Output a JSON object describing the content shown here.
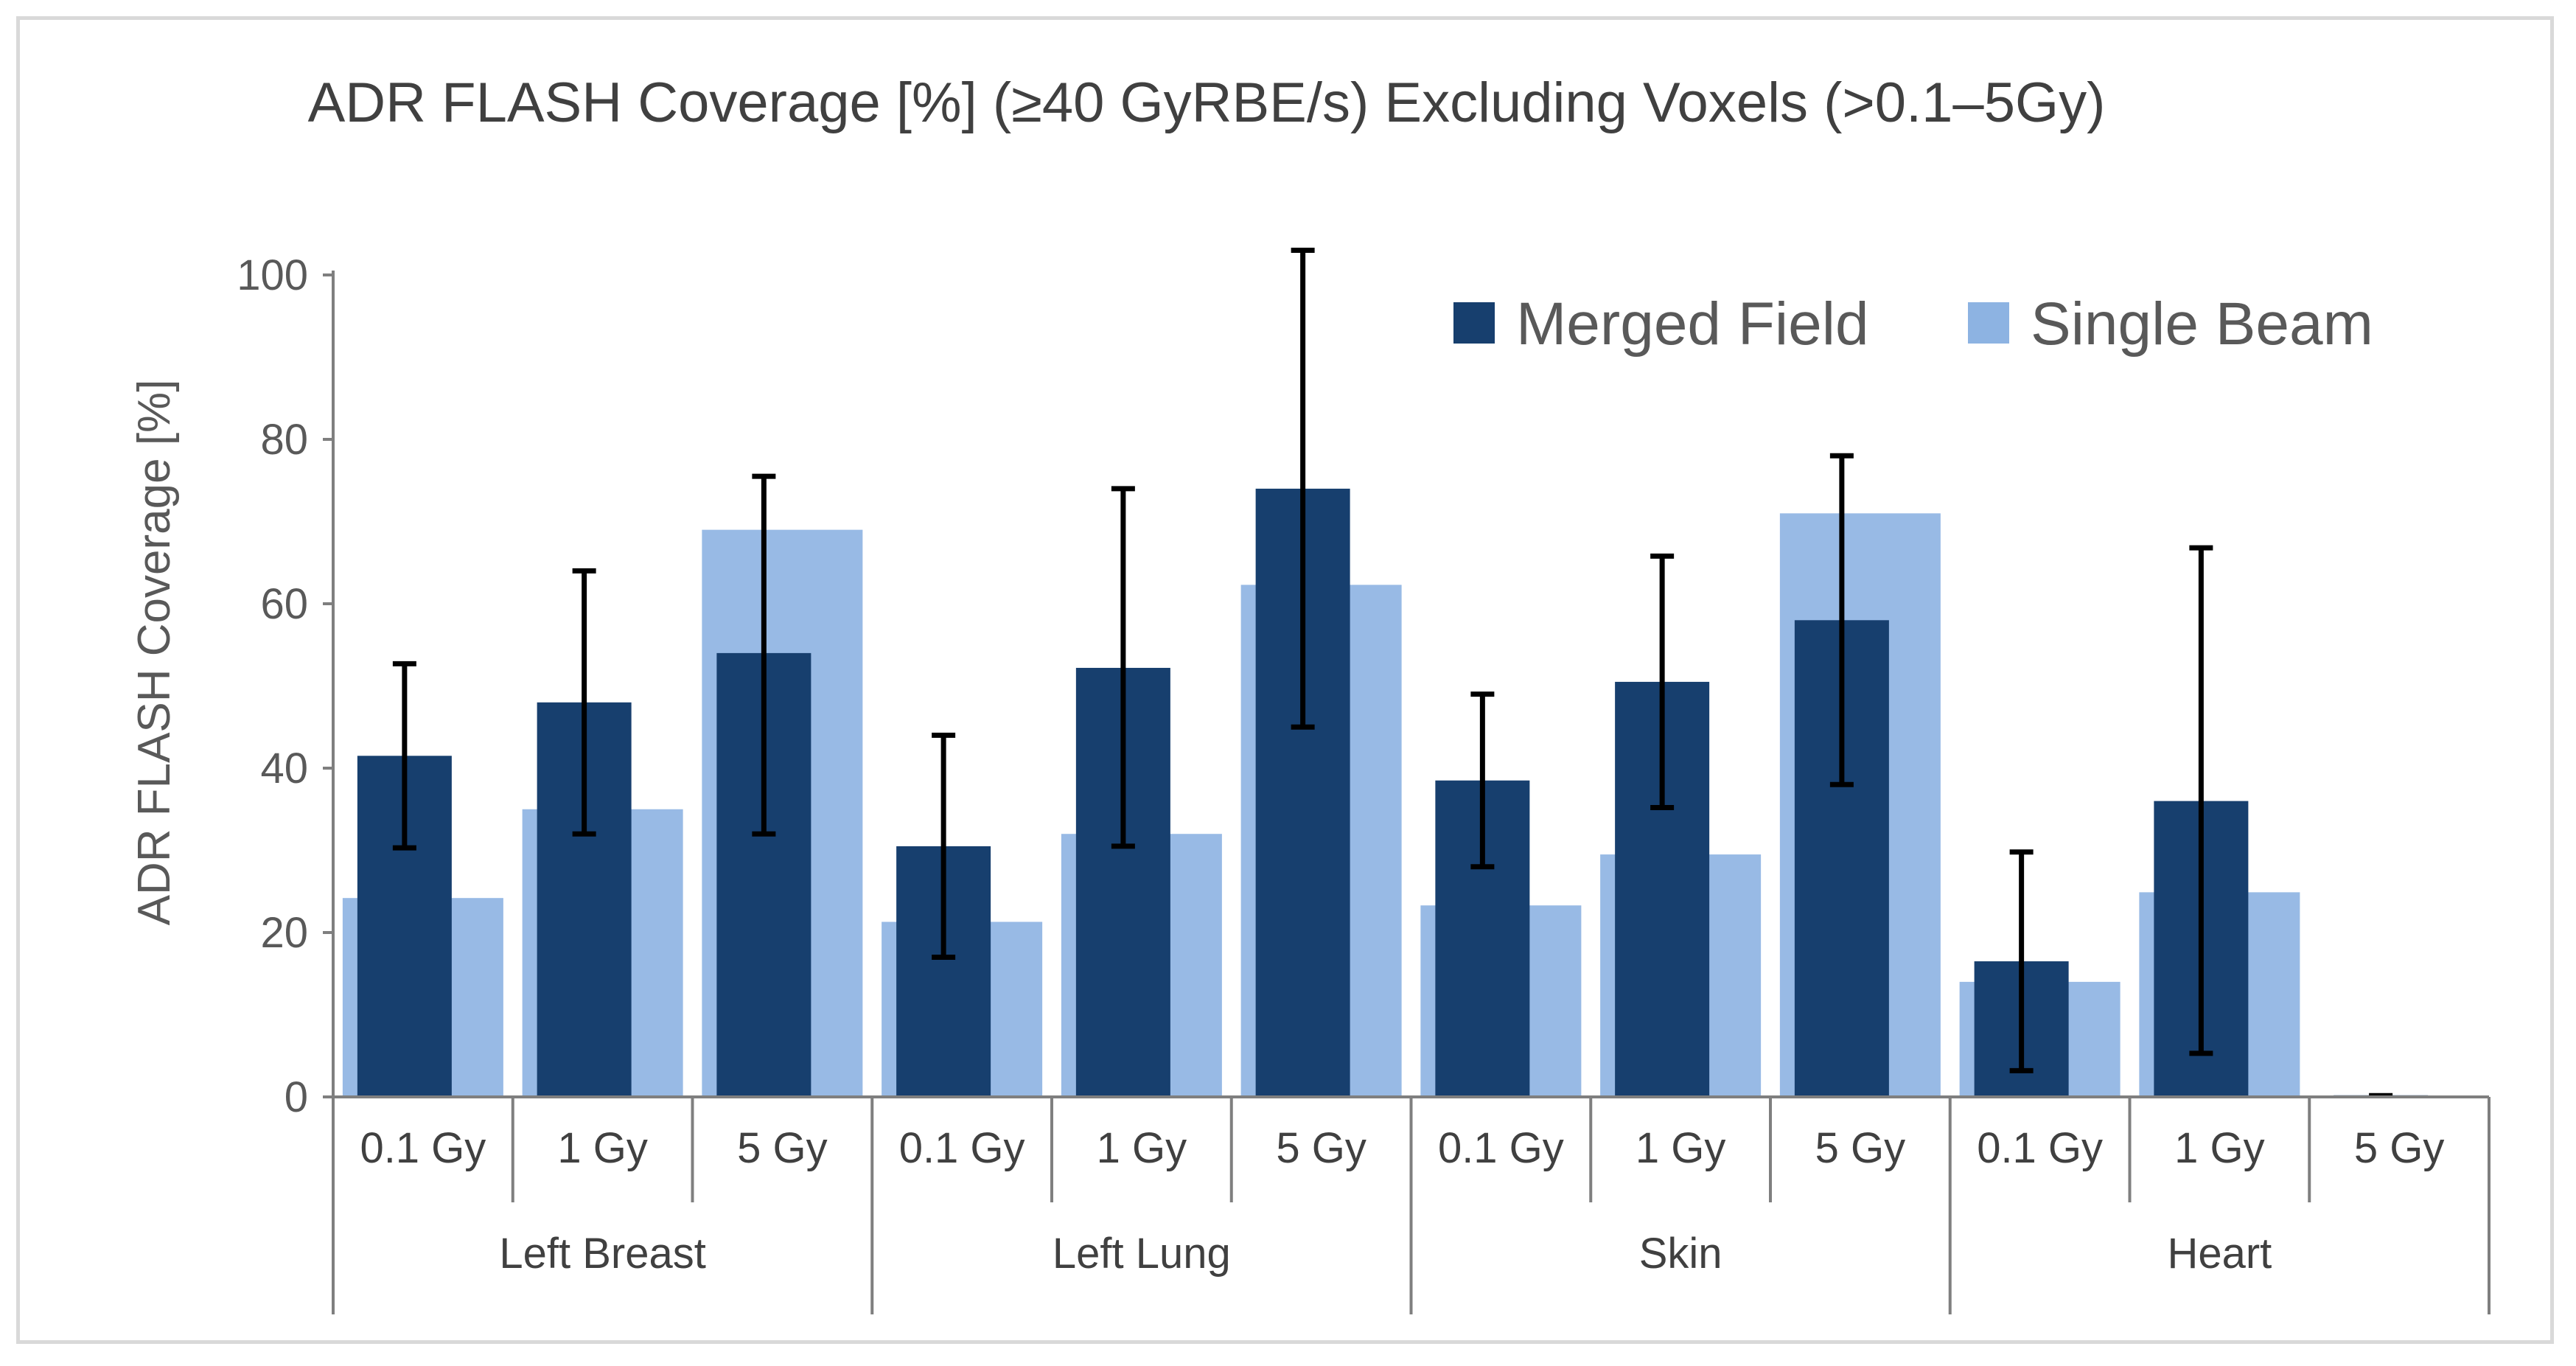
{
  "chart_data": {
    "type": "bar",
    "title": "ADR FLASH Coverage [%] (≥40 GyRBE/s) Excluding Voxels (>0.1–5Gy)",
    "ylabel": "ADR FLASH Coverage [%]",
    "xlabel": "",
    "ylim": [
      0,
      100
    ],
    "yticks": [
      "0",
      "20",
      "40",
      "60",
      "80",
      "100"
    ],
    "groups": [
      "Left Breast",
      "Left Lung",
      "Skin",
      "Heart"
    ],
    "categories": [
      "0.1 Gy",
      "1 Gy",
      "5 Gy",
      "0.1 Gy",
      "1 Gy",
      "5 Gy",
      "0.1 Gy",
      "1 Gy",
      "5 Gy",
      "0.1 Gy",
      "1 Gy",
      "5 Gy"
    ],
    "series": [
      {
        "name": "Merged Field",
        "color": "#173f6e",
        "values": [
          41.5,
          48,
          54,
          30.5,
          52.2,
          74,
          38.5,
          50.5,
          58,
          16.5,
          36,
          0.2
        ],
        "error_low": [
          30.3,
          32,
          32,
          17,
          30.5,
          45,
          28,
          35.2,
          38,
          3.2,
          5.3,
          0
        ],
        "error_high": [
          52.7,
          64,
          75.5,
          44,
          74,
          103,
          49,
          65.8,
          78,
          29.8,
          66.8,
          0
        ]
      },
      {
        "name": "Single Beam",
        "color": "#8db3e2",
        "values": [
          24.2,
          35,
          69,
          21.3,
          32,
          62.3,
          23.3,
          29.5,
          71,
          14,
          24.9,
          0
        ]
      }
    ],
    "legend_position": "top-right",
    "grid": false
  }
}
